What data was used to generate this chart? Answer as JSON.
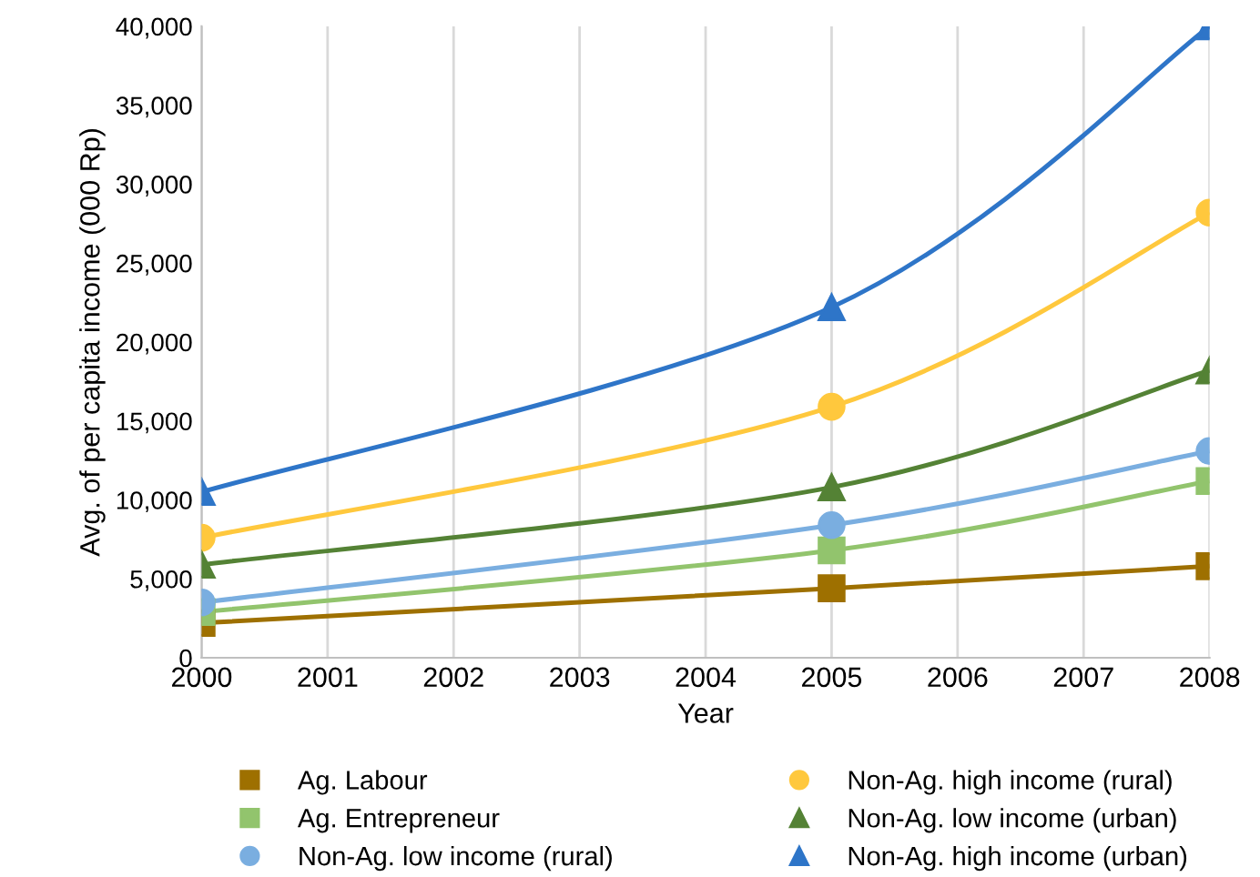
{
  "chart_data": {
    "type": "line",
    "xlabel": "Year",
    "ylabel": "Avg. of per capita income (000 Rp)",
    "xlim": [
      2000,
      2008
    ],
    "xticks": [
      2000,
      2001,
      2002,
      2003,
      2004,
      2005,
      2006,
      2007,
      2008
    ],
    "ylim": [
      0,
      40000
    ],
    "yticks": [
      {
        "value": 0,
        "label": "0"
      },
      {
        "value": 5000,
        "label": "5,000"
      },
      {
        "value": 10000,
        "label": "10,000"
      },
      {
        "value": 15000,
        "label": "15,000"
      },
      {
        "value": 20000,
        "label": "20,000"
      },
      {
        "value": 25000,
        "label": "25,000"
      },
      {
        "value": 30000,
        "label": "30,000"
      },
      {
        "value": 35000,
        "label": "35,000"
      },
      {
        "value": 40000,
        "label": "40,000"
      }
    ],
    "grid": "x",
    "legend": "bottom",
    "series": [
      {
        "name": "Ag. Labour",
        "color": "#9e7000",
        "marker": "square",
        "x": [
          2000,
          2005,
          2008
        ],
        "values": [
          2200,
          4400,
          5800
        ]
      },
      {
        "name": "Ag. Entrepreneur",
        "color": "#92c46d",
        "marker": "square",
        "x": [
          2000,
          2005,
          2008
        ],
        "values": [
          2900,
          6800,
          11200
        ]
      },
      {
        "name": "Non-Ag. low income (rural)",
        "color": "#7aaee0",
        "marker": "circle",
        "x": [
          2000,
          2005,
          2008
        ],
        "values": [
          3500,
          8400,
          13100
        ]
      },
      {
        "name": "Non-Ag. high income (rural)",
        "color": "#ffc83d",
        "marker": "circle",
        "x": [
          2000,
          2005,
          2008
        ],
        "values": [
          7600,
          15900,
          28200
        ]
      },
      {
        "name": "Non-Ag. low income (urban)",
        "color": "#548235",
        "marker": "triangle",
        "x": [
          2000,
          2005,
          2008
        ],
        "values": [
          5900,
          10800,
          18200
        ]
      },
      {
        "name": "Non-Ag. high income (urban)",
        "color": "#2e75c8",
        "marker": "triangle",
        "x": [
          2000,
          2005,
          2008
        ],
        "values": [
          10500,
          22200,
          40000
        ]
      }
    ]
  }
}
